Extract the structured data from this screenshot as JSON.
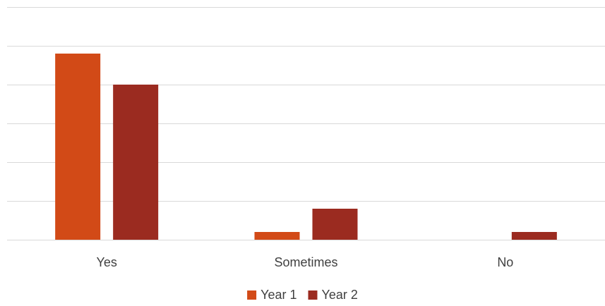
{
  "chart_data": {
    "type": "bar",
    "categories": [
      "Yes",
      "Sometimes",
      "No"
    ],
    "series": [
      {
        "name": "Year 1",
        "values": [
          48,
          2,
          0
        ],
        "color": "#D24A17"
      },
      {
        "name": "Year 2",
        "values": [
          40,
          8,
          2
        ],
        "color": "#9B2B20"
      }
    ],
    "title": "",
    "xlabel": "",
    "ylabel": "",
    "ylim": [
      0,
      60
    ],
    "ytick_step": 10,
    "y_tick_labels_visible": false,
    "grid": true,
    "gridline_color": "#D9D9D9",
    "legend_position": "bottom"
  }
}
